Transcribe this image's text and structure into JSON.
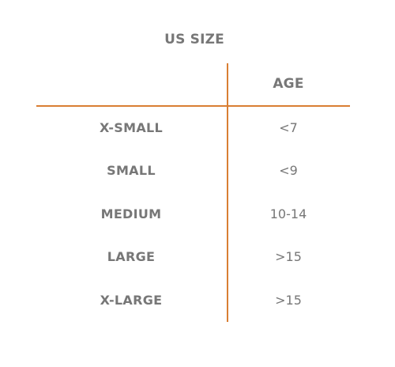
{
  "table": {
    "headers": {
      "size": "US SIZE",
      "age": "AGE"
    },
    "rows": [
      {
        "size": "X-SMALL",
        "age": "<7"
      },
      {
        "size": "SMALL",
        "age": "<9"
      },
      {
        "size": "MEDIUM",
        "age": "10-14"
      },
      {
        "size": "LARGE",
        "age": ">15"
      },
      {
        "size": "X-LARGE",
        "age": ">15"
      }
    ]
  },
  "colors": {
    "rule": "#D97E33",
    "text": "#777777",
    "background": "#FFFFFF"
  }
}
